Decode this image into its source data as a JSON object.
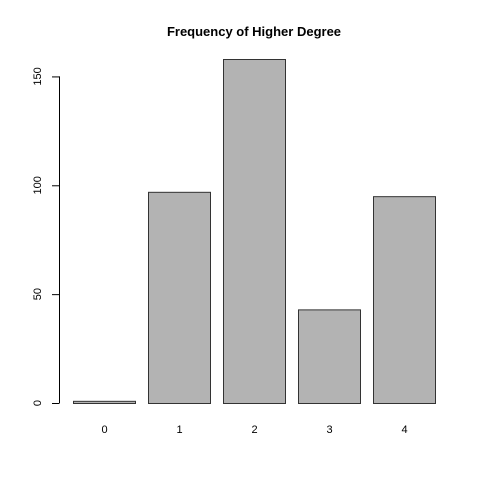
{
  "chart_data": {
    "type": "bar",
    "title": "Frequency of Higher Degree",
    "xlabel": "",
    "ylabel": "",
    "categories": [
      "0",
      "1",
      "2",
      "3",
      "4"
    ],
    "values": [
      1,
      97,
      158,
      43,
      95
    ],
    "ylim": [
      0,
      158
    ],
    "yticks": [
      0,
      50,
      100,
      150
    ],
    "ytick_labels": [
      "0",
      "50",
      "100",
      "150"
    ],
    "grid": false,
    "bar_fill": "#b3b3b3",
    "bar_stroke": "#333333"
  }
}
